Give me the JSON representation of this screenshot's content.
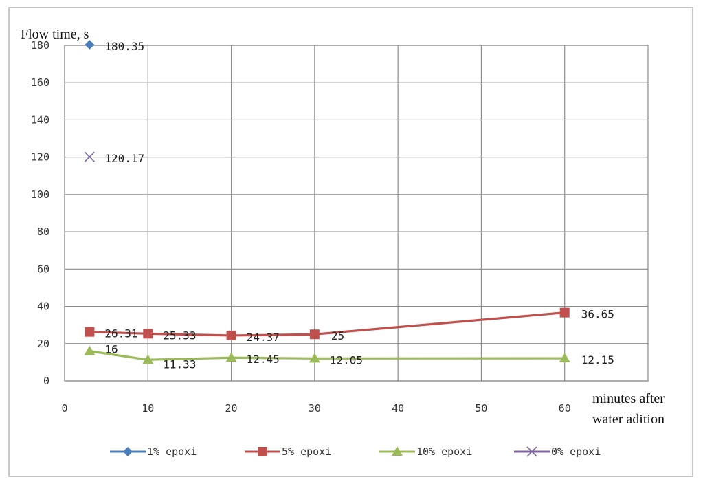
{
  "chart_data": {
    "type": "line",
    "ylabel": "Flow time, s",
    "xlabel_lines": [
      "minutes after",
      "water adition"
    ],
    "xlim": [
      0,
      70
    ],
    "ylim": [
      0,
      180
    ],
    "xticks": [
      0,
      10,
      20,
      30,
      40,
      50,
      60
    ],
    "yticks": [
      0,
      20,
      40,
      60,
      80,
      100,
      120,
      140,
      160,
      180
    ],
    "grid": true,
    "legend_position": "bottom",
    "series": [
      {
        "name": "1% epoxi",
        "color": "#4a7ebb",
        "marker": "diamond",
        "points": [
          {
            "x": 3,
            "y": 180.35,
            "label": "180.35"
          }
        ]
      },
      {
        "name": "5% epoxi",
        "color": "#c0504d",
        "marker": "square",
        "points": [
          {
            "x": 3,
            "y": 26.31,
            "label": "26.31"
          },
          {
            "x": 10,
            "y": 25.33,
            "label": "25.33"
          },
          {
            "x": 20,
            "y": 24.37,
            "label": "24.37"
          },
          {
            "x": 30,
            "y": 25,
            "label": "25"
          },
          {
            "x": 60,
            "y": 36.65,
            "label": "36.65"
          }
        ]
      },
      {
        "name": "10% epoxi",
        "color": "#9bbb59",
        "marker": "triangle",
        "points": [
          {
            "x": 3,
            "y": 16,
            "label": "16"
          },
          {
            "x": 10,
            "y": 11.33,
            "label": "11.33"
          },
          {
            "x": 20,
            "y": 12.45,
            "label": "12.45"
          },
          {
            "x": 30,
            "y": 12.05,
            "label": "12.05"
          },
          {
            "x": 60,
            "y": 12.15,
            "label": "12.15"
          }
        ]
      },
      {
        "name": "0% epoxi",
        "color": "#8064a2",
        "marker": "x",
        "points": [
          {
            "x": 3,
            "y": 120.17,
            "label": "120.17"
          }
        ]
      }
    ]
  }
}
